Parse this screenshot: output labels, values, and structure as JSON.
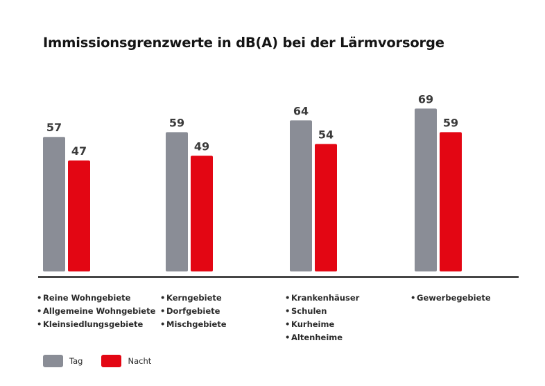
{
  "chart_data": {
    "type": "bar",
    "title": "Immissionsgrenzwerte in dB(A) bei der Lärmvorsorge",
    "xlabel": "",
    "ylabel": "",
    "ylim": [
      0,
      80
    ],
    "grid": false,
    "legend_position": "bottom-left",
    "categories": [
      [
        "Reine Wohngebiete",
        "Allgemeine Wohngebiete",
        "Kleinsiedlungsgebiete"
      ],
      [
        "Kerngebiete",
        "Dorfgebiete",
        "Mischgebiete"
      ],
      [
        "Krankenhäuser",
        "Schulen",
        "Kurheime",
        "Altenheime"
      ],
      [
        "Gewerbegebiete"
      ]
    ],
    "series": [
      {
        "name": "Tag",
        "color": "#8a8d96",
        "values": [
          57,
          59,
          64,
          69
        ]
      },
      {
        "name": "Nacht",
        "color": "#e30613",
        "values": [
          47,
          49,
          54,
          59
        ]
      }
    ]
  }
}
